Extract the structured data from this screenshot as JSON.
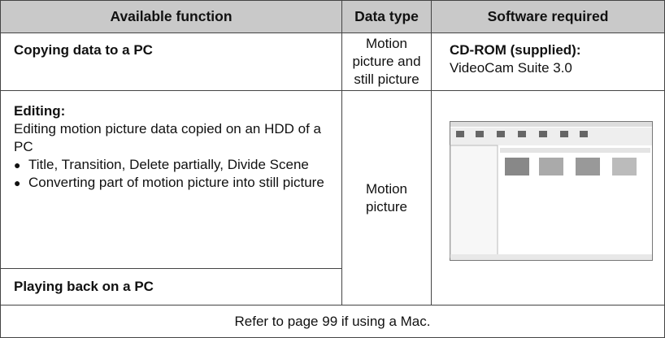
{
  "header": [
    "Available function",
    "Data type",
    "Software required"
  ],
  "copying": {
    "function": "Copying data to a PC",
    "data_type": "Motion picture and still picture",
    "software_title": "CD-ROM (supplied):",
    "software_name": "VideoCam Suite 3.0"
  },
  "editing": {
    "title": "Editing:",
    "description": "Editing motion picture data copied on an HDD of a PC",
    "bullets": [
      "Title, Transition, Delete partially, Divide Scene",
      "Converting part of motion picture into still picture"
    ]
  },
  "playing": "Playing back on a PC",
  "shared_data_type": "Motion picture",
  "footer": "Refer to page 99 if using a Mac."
}
